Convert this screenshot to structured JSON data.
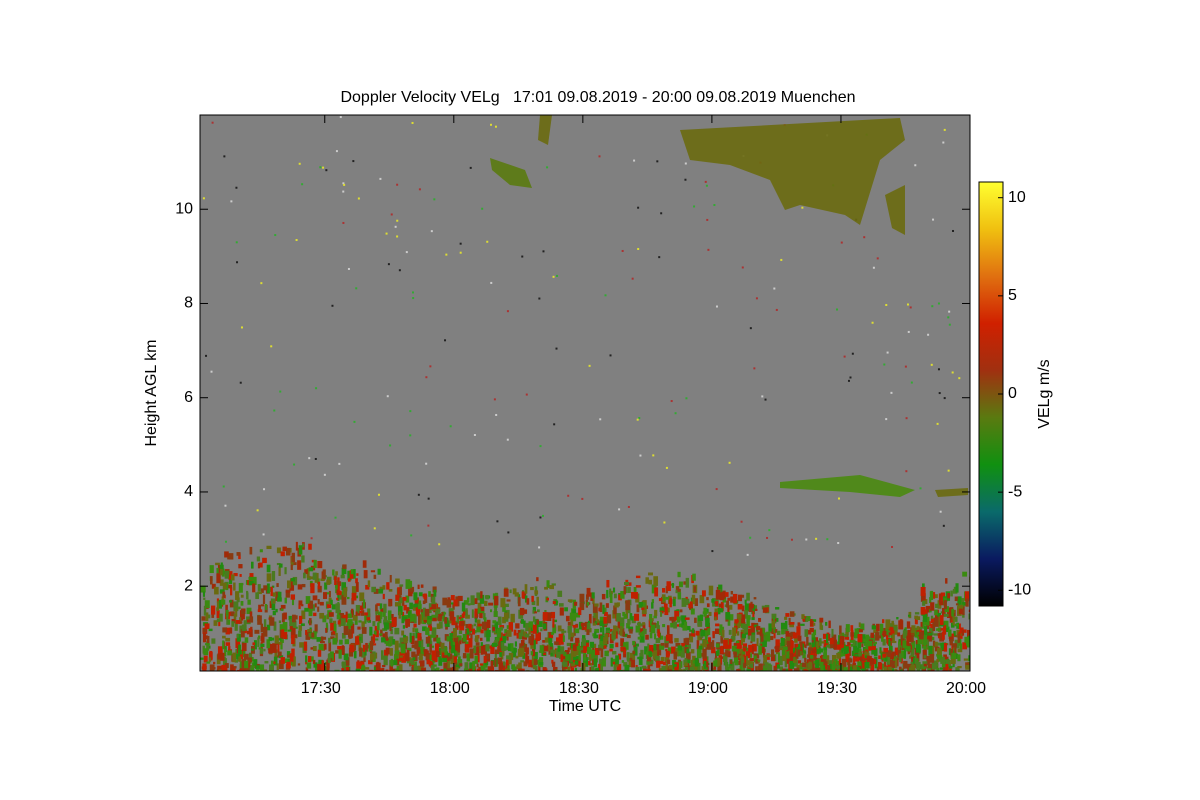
{
  "chart_data": {
    "type": "time-height",
    "title": "Doppler Velocity VELg   17:01 09.08.2019 - 20:00 09.08.2019 Muenchen",
    "xlabel": "Time UTC",
    "ylabel": "Height AGL km",
    "xlim": [
      1021,
      1200
    ],
    "xticks": [
      {
        "value": 1050,
        "label": "17:30"
      },
      {
        "value": 1080,
        "label": "18:00"
      },
      {
        "value": 1110,
        "label": "18:30"
      },
      {
        "value": 1140,
        "label": "19:00"
      },
      {
        "value": 1170,
        "label": "19:30"
      },
      {
        "value": 1200,
        "label": "20:00"
      }
    ],
    "ylim": [
      0.2,
      12
    ],
    "yticks": [
      2,
      4,
      6,
      8,
      10
    ],
    "background": "#808080",
    "colorbar": {
      "label": "VELg m/s",
      "lim": [
        -10.8,
        10.8
      ],
      "ticks": [
        10,
        5,
        0,
        -5,
        -10
      ],
      "colormap": [
        "#000000",
        "#0a1a60",
        "#0a6a6a",
        "#109010",
        "#5a7a10",
        "#a03010",
        "#d02000",
        "#e07010",
        "#f0c010",
        "#ffff30"
      ]
    }
  }
}
